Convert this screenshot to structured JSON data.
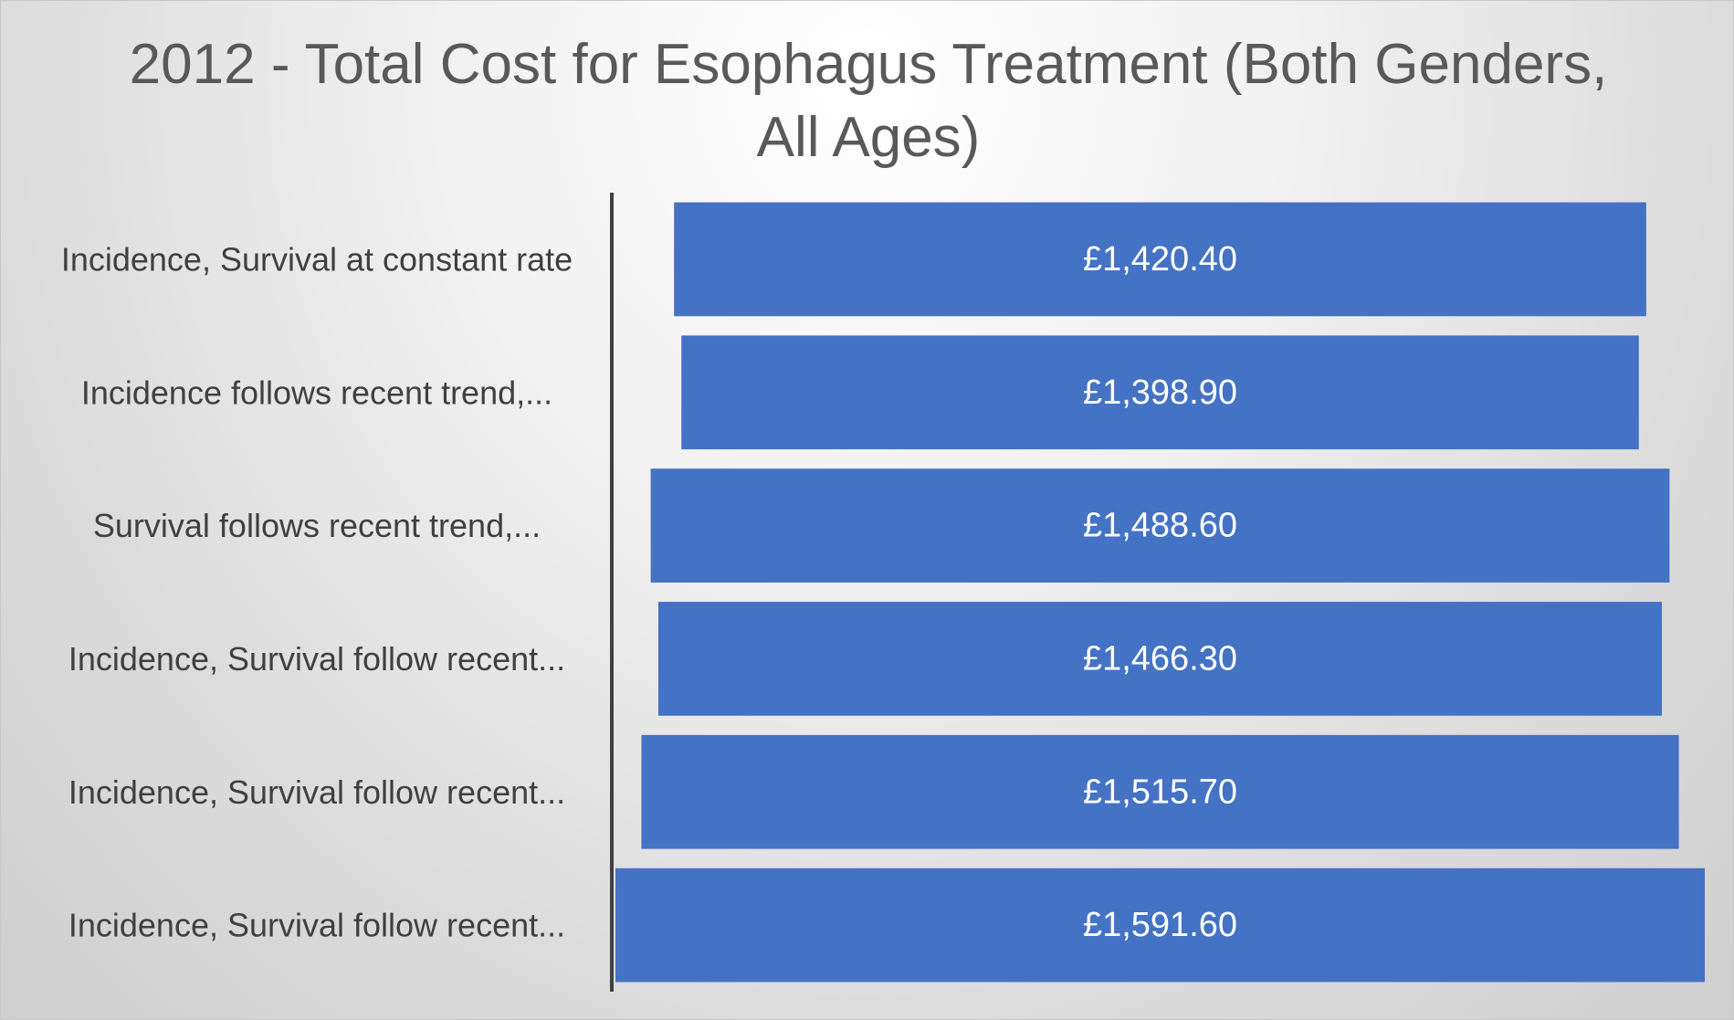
{
  "chart_data": {
    "type": "bar",
    "orientation": "horizontal",
    "title": "2012 - Total Cost for Esophagus Treatment (Both Genders, All Ages)",
    "xlabel": "",
    "ylabel": "",
    "categories": [
      "Incidence, Survival at constant rate",
      "Incidence follows recent trend,...",
      "Survival follows recent trend,...",
      "Incidence, Survival follow recent...",
      "Incidence, Survival follow recent...",
      "Incidence, Survival follow recent..."
    ],
    "values": [
      1420.4,
      1398.9,
      1488.6,
      1466.3,
      1515.7,
      1591.6
    ],
    "data_labels": [
      "£1,420.40",
      "£1,398.90",
      "£1,488.60",
      "£1,466.30",
      "£1,515.70",
      "£1,591.60"
    ],
    "xlim": [
      0,
      1591.6
    ],
    "grid": false,
    "legend": "none",
    "bar_alignment": "centered",
    "bar_color": "#4472C4",
    "axis_color": "#404040"
  }
}
